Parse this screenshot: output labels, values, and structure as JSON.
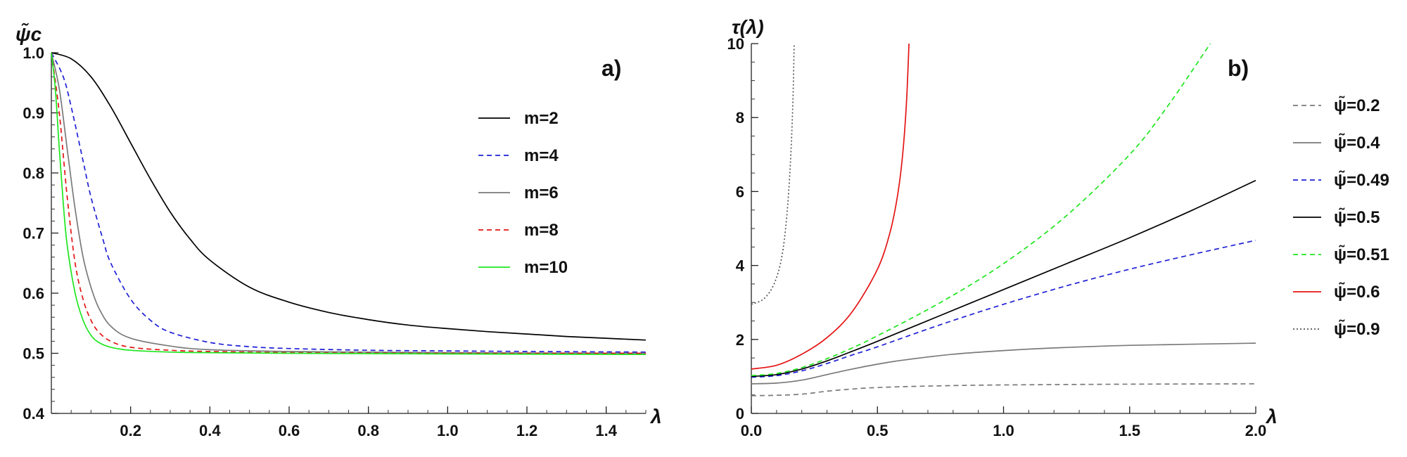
{
  "colors": {
    "black": "#000000",
    "blue": "#1f1fd6",
    "gray": "#7a7a7a",
    "red": "#e51414",
    "green": "#1ee61e",
    "dotgray": "#555555"
  },
  "chart_data": [
    {
      "type": "line",
      "panel_label": "a)",
      "ylabel": "ψ̃c",
      "xlabel": "λ",
      "xlim": [
        0,
        1.5
      ],
      "ylim": [
        0.4,
        1.0
      ],
      "xticks": [
        "0.2",
        "0.4",
        "0.6",
        "0.8",
        "1.0",
        "1.2",
        "1.4"
      ],
      "yticks": [
        "0.4",
        "0.5",
        "0.6",
        "0.7",
        "0.8",
        "0.9",
        "1.0"
      ],
      "legend_position": "right",
      "series": [
        {
          "name": "m=2",
          "color": "#000000",
          "dash": "solid",
          "x": [
            0,
            0.05,
            0.1,
            0.15,
            0.2,
            0.25,
            0.3,
            0.35,
            0.4,
            0.5,
            0.6,
            0.7,
            0.8,
            0.9,
            1.0,
            1.1,
            1.2,
            1.3,
            1.4,
            1.5
          ],
          "y": [
            1.0,
            0.99,
            0.96,
            0.91,
            0.85,
            0.79,
            0.735,
            0.69,
            0.655,
            0.61,
            0.585,
            0.568,
            0.556,
            0.547,
            0.541,
            0.536,
            0.532,
            0.528,
            0.525,
            0.522
          ]
        },
        {
          "name": "m=4",
          "color": "#1f1fd6",
          "dash": "dashed",
          "x": [
            0,
            0.03,
            0.05,
            0.08,
            0.1,
            0.13,
            0.15,
            0.2,
            0.25,
            0.3,
            0.4,
            0.5,
            0.6,
            0.8,
            1.0,
            1.2,
            1.5
          ],
          "y": [
            1.0,
            0.96,
            0.91,
            0.82,
            0.76,
            0.69,
            0.65,
            0.59,
            0.555,
            0.535,
            0.518,
            0.511,
            0.508,
            0.505,
            0.504,
            0.503,
            0.502
          ]
        },
        {
          "name": "m=6",
          "color": "#7a7a7a",
          "dash": "solid",
          "x": [
            0,
            0.02,
            0.04,
            0.06,
            0.08,
            0.1,
            0.12,
            0.15,
            0.2,
            0.3,
            0.4,
            0.6,
            0.8,
            1.0,
            1.5
          ],
          "y": [
            1.0,
            0.94,
            0.84,
            0.74,
            0.66,
            0.61,
            0.575,
            0.545,
            0.525,
            0.512,
            0.506,
            0.503,
            0.502,
            0.501,
            0.5
          ]
        },
        {
          "name": "m=8",
          "color": "#e51414",
          "dash": "dashed",
          "x": [
            0,
            0.02,
            0.04,
            0.06,
            0.08,
            0.1,
            0.12,
            0.15,
            0.2,
            0.3,
            0.4,
            0.6,
            1.0,
            1.5
          ],
          "y": [
            1.0,
            0.9,
            0.76,
            0.65,
            0.59,
            0.555,
            0.535,
            0.52,
            0.51,
            0.505,
            0.503,
            0.501,
            0.5,
            0.5
          ]
        },
        {
          "name": "m=10",
          "color": "#1ee61e",
          "dash": "solid",
          "x": [
            0,
            0.01,
            0.02,
            0.03,
            0.04,
            0.06,
            0.08,
            0.1,
            0.12,
            0.15,
            0.2,
            0.3,
            0.4,
            0.6,
            1.0,
            1.5
          ],
          "y": [
            1.0,
            0.94,
            0.84,
            0.75,
            0.68,
            0.6,
            0.555,
            0.53,
            0.518,
            0.51,
            0.505,
            0.502,
            0.501,
            0.5,
            0.499,
            0.498
          ]
        }
      ]
    },
    {
      "type": "line",
      "panel_label": "b)",
      "ylabel": "τ(λ)",
      "xlabel": "λ",
      "xlim": [
        0,
        2.0
      ],
      "ylim": [
        0,
        10
      ],
      "xticks": [
        "0.0",
        "0.5",
        "1.0",
        "1.5",
        "2.0"
      ],
      "yticks": [
        "0",
        "2",
        "4",
        "6",
        "8",
        "10"
      ],
      "legend_position": "right",
      "series": [
        {
          "name": "ψ̃=0.2",
          "color": "#7a7a7a",
          "dash": "dashed",
          "x": [
            0,
            0.1,
            0.2,
            0.3,
            0.4,
            0.5,
            0.7,
            1.0,
            1.5,
            2.0
          ],
          "y": [
            0.48,
            0.49,
            0.52,
            0.6,
            0.66,
            0.7,
            0.74,
            0.77,
            0.79,
            0.8
          ]
        },
        {
          "name": "ψ̃=0.4",
          "color": "#7a7a7a",
          "dash": "solid",
          "x": [
            0,
            0.1,
            0.2,
            0.3,
            0.4,
            0.5,
            0.6,
            0.8,
            1.0,
            1.2,
            1.5,
            2.0
          ],
          "y": [
            0.8,
            0.82,
            0.9,
            1.05,
            1.2,
            1.33,
            1.44,
            1.6,
            1.7,
            1.77,
            1.84,
            1.9
          ]
        },
        {
          "name": "ψ̃=0.49",
          "color": "#1f1fd6",
          "dash": "dashed",
          "x": [
            0,
            0.1,
            0.2,
            0.3,
            0.4,
            0.5,
            0.75,
            1.0,
            1.25,
            1.5,
            1.75,
            2.0
          ],
          "y": [
            0.98,
            1.02,
            1.15,
            1.35,
            1.58,
            1.8,
            2.4,
            2.95,
            3.45,
            3.9,
            4.3,
            4.68
          ]
        },
        {
          "name": "ψ̃=0.5",
          "color": "#000000",
          "dash": "solid",
          "x": [
            0,
            0.1,
            0.2,
            0.3,
            0.4,
            0.5,
            0.75,
            1.0,
            1.25,
            1.5,
            1.75,
            2.0
          ],
          "y": [
            1.0,
            1.05,
            1.2,
            1.42,
            1.68,
            1.95,
            2.65,
            3.35,
            4.05,
            4.75,
            5.5,
            6.3
          ]
        },
        {
          "name": "ψ̃=0.51",
          "color": "#1ee61e",
          "dash": "dashed",
          "x": [
            0,
            0.1,
            0.2,
            0.3,
            0.4,
            0.5,
            0.75,
            1.0,
            1.25,
            1.5,
            1.65,
            1.82
          ],
          "y": [
            1.02,
            1.08,
            1.24,
            1.48,
            1.77,
            2.1,
            3.0,
            4.05,
            5.35,
            7.0,
            8.3,
            10.0
          ]
        },
        {
          "name": "ψ̃=0.6",
          "color": "#e51414",
          "dash": "solid",
          "x": [
            0,
            0.1,
            0.2,
            0.3,
            0.4,
            0.5,
            0.55,
            0.58,
            0.6,
            0.615,
            0.625
          ],
          "y": [
            1.2,
            1.3,
            1.6,
            2.05,
            2.75,
            3.9,
            4.9,
            5.9,
            7.0,
            8.4,
            10.0
          ]
        },
        {
          "name": "ψ̃=0.9",
          "color": "#555555",
          "dash": "dotted",
          "x": [
            0,
            0.05,
            0.09,
            0.12,
            0.14,
            0.155,
            0.165,
            0.17
          ],
          "y": [
            2.95,
            3.1,
            3.5,
            4.2,
            5.3,
            6.8,
            8.5,
            10.0
          ]
        }
      ]
    }
  ]
}
